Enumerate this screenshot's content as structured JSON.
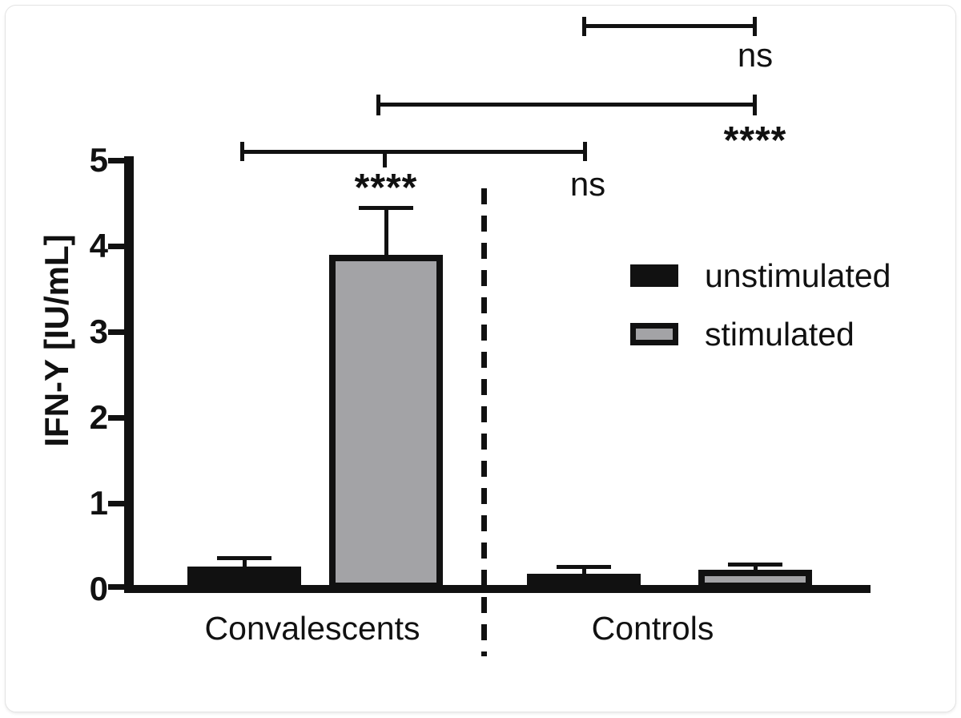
{
  "figure": {
    "y_axis": {
      "title": "IFN-Y [IU/mL]",
      "ticks": [
        "0",
        "1",
        "2",
        "3",
        "4",
        "5"
      ]
    },
    "x_axis": {
      "groups": [
        "Convalescents",
        "Controls"
      ]
    },
    "legend": {
      "items": [
        {
          "label": "unstimulated",
          "color": "#111111"
        },
        {
          "label": "stimulated",
          "color": "#a3a3a6"
        }
      ]
    },
    "significance": {
      "controls_unstim_vs_stim": "ns",
      "stim_vs_stim": "****",
      "conval_unstim_vs_stim": "****",
      "unstim_vs_unstim": "ns"
    },
    "colors": {
      "ink": "#111111",
      "bar_gray": "#a3a3a6",
      "card_border": "#e3e3e3"
    }
  },
  "chart_data": {
    "type": "bar",
    "title": "",
    "xlabel": "",
    "ylabel": "IFN-Y [IU/mL]",
    "ylim": [
      0,
      5
    ],
    "yticks": [
      0,
      1,
      2,
      3,
      4,
      5
    ],
    "grid": false,
    "legend_position": "right",
    "categories": [
      "Convalescents",
      "Controls"
    ],
    "series": [
      {
        "name": "unstimulated",
        "color": "#111111",
        "values": [
          0.26,
          0.18
        ],
        "errors": [
          0.12,
          0.1
        ]
      },
      {
        "name": "stimulated",
        "color": "#a3a3a6",
        "values": [
          3.9,
          0.22
        ],
        "errors": [
          0.57,
          0.09
        ]
      }
    ],
    "error_bars": "upper SD, cap style T",
    "annotations": [
      {
        "label": "ns",
        "comparison": "Controls unstimulated vs Controls stimulated"
      },
      {
        "label": "****",
        "comparison": "Convalescents stimulated vs Controls stimulated"
      },
      {
        "label": "****",
        "comparison": "Convalescents unstimulated vs Convalescents stimulated"
      },
      {
        "label": "ns",
        "comparison": "Convalescents unstimulated vs Controls unstimulated"
      }
    ],
    "group_divider": "dashed vertical line between Convalescents and Controls"
  }
}
